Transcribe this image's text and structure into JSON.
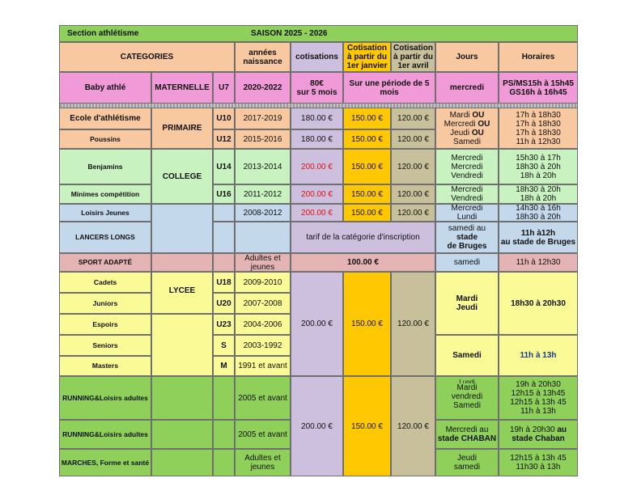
{
  "header": {
    "section": "Section athlétisme",
    "saison": "SAISON 2025 - 2026"
  },
  "columns": {
    "categories": "CATEGORIES",
    "annees": [
      "années",
      "naissance"
    ],
    "cotisations": "cotisations",
    "janvier": [
      "Cotisation",
      "à partir du",
      "1er janvier"
    ],
    "avril": [
      "Cotisation",
      "à partir du",
      "1er avril"
    ],
    "jours": "Jours",
    "horaires": "Horaires"
  },
  "baby": {
    "name": "Baby athlé",
    "group": "MATERNELLE",
    "code": "U7",
    "years": "2020-2022",
    "price": [
      "80€",
      "sur 5 mois"
    ],
    "period": [
      "Sur une période de 5",
      "mois"
    ],
    "jours": "mercredi",
    "horaires": [
      "PS/MS15h à 15h45",
      "GS16h à 16h45"
    ]
  },
  "groups": {
    "primaire": "PRIMAIRE",
    "college": "COLLEGE",
    "lycee": "LYCEE"
  },
  "rows": {
    "ecole": {
      "name": "Ecole d'athlétisme",
      "code": "U10",
      "years": "2017-2019",
      "cot": "180.00 €",
      "jan": "150.00 €",
      "avr": "120.00 €"
    },
    "poussins": {
      "name": "Poussins",
      "code": "U12",
      "years": "2015-2016",
      "cot": "180.00 €",
      "jan": "150.00 €",
      "avr": "120.00 €"
    },
    "ecole_poussins_jours": [
      {
        "pre": "Mardi ",
        "post": "OU"
      },
      {
        "pre": "Mercredi ",
        "post": "OU"
      },
      {
        "pre": "Jeudi ",
        "post": "OU"
      },
      {
        "pre": "Samedi",
        "post": ""
      }
    ],
    "ecole_poussins_horaires": [
      "17h à 18h30",
      "17h à 18h30",
      "17h à 18h30",
      "11h à 12h30"
    ],
    "benjamins": {
      "name": "Benjamins",
      "code": "U14",
      "years": "2013-2014",
      "cot": "200.00 €",
      "jan": "150.00 €",
      "avr": "120.00 €",
      "jours": [
        "Mercredi",
        "Mercredi",
        "Vendredi"
      ],
      "horaires": [
        "15h30 à 17h",
        "18h30 à 20h",
        "18h à 20h"
      ]
    },
    "minimes": {
      "name": "Minimes compétition",
      "code": "U16",
      "years": "2011-2012",
      "cot": "200.00 €",
      "jan": "150.00 €",
      "avr": "120.00 €",
      "jours": [
        "Mercredi",
        "Vendredi"
      ],
      "horaires": [
        "18h30 à 20h",
        "18h à 20h"
      ]
    },
    "loisirs": {
      "name": "Loisirs Jeunes",
      "years": "2008-2012",
      "cot": "200.00 €",
      "jan": "150.00 €",
      "avr": "120.00 €",
      "jours": [
        "Mercredi",
        "Lundi"
      ],
      "horaires": [
        "14h30 à 16h",
        "18h30 à 20h"
      ]
    },
    "lancers": {
      "name": "LANCERS LONGS",
      "tarif": "tarif de la catégorie d'inscription",
      "jours_pre": "samedi au ",
      "jours_b1": "stade",
      "jours_b2": "de Bruges",
      "horaires": [
        "11h à12h",
        "au stade de Bruges"
      ]
    },
    "adapte": {
      "name": "SPORT ADAPTÉ",
      "years": [
        "Adultes et",
        "jeunes"
      ],
      "price": "100.00 €",
      "jours": "samedi",
      "horaires": "11h à 12h30"
    },
    "lycee_rows": [
      {
        "name": "Cadets",
        "code": "U18",
        "years": "2009-2010"
      },
      {
        "name": "Juniors",
        "code": "U20",
        "years": "2007-2008"
      },
      {
        "name": "Espoirs",
        "code": "U23",
        "years": "2004-2006"
      },
      {
        "name": "Seniors",
        "code": "S",
        "years": "2003-1992"
      },
      {
        "name": "Masters",
        "code": "M",
        "years": "1991 et avant"
      }
    ],
    "lycee_prices": {
      "cot": "200.00 €",
      "jan": "150.00 €",
      "avr": "120.00 €"
    },
    "lycee_jours_1": [
      "Mardi",
      "Jeudi"
    ],
    "lycee_horaires_1": "18h30 à 20h30",
    "lycee_jours_2": "Samedi",
    "lycee_horaires_2": "11h à 13h",
    "running1": {
      "name": "RUNNING&Loisirs  adultes",
      "years": "2005 et avant",
      "jours_clipped": "Lundi",
      "jours": [
        "Mardi",
        "vendredi",
        "Samedi"
      ],
      "horaires": [
        "19h à 20h30",
        "12h15 à 13h45",
        "12h15 à 13h 45",
        "11h à 13h"
      ]
    },
    "running2": {
      "name": "RUNNING&Loisirs  adultes",
      "years": "2005 et avant",
      "jours": [
        "Mercredi au",
        "stade CHABAN"
      ],
      "horaires_pre": "19h à 20h30 ",
      "horaires_b1": "au",
      "horaires_b2": "stade Chaban"
    },
    "marches": {
      "name": "MARCHES, Forme et santé",
      "years": [
        "Adultes et",
        "jeunes"
      ],
      "jours": [
        "Jeudi",
        "samedi"
      ],
      "horaires": [
        "12h15 à 13h 45",
        "11h30 à 13h"
      ]
    },
    "adult_prices": {
      "cot": "200.00 €",
      "jan": "150.00 €",
      "avr": "120.00 €"
    }
  },
  "colors": {
    "orange": "#f8c8a0",
    "pink": "#f09ad8",
    "lightgreen": "#c8f2c0",
    "lightblue": "#c4d8ec",
    "rose": "#e4b4b4",
    "yellow": "#fafa96",
    "green": "#8fd05a",
    "lavender": "#ccc0de",
    "gold": "#ffc800",
    "tan": "#c8c09a"
  }
}
